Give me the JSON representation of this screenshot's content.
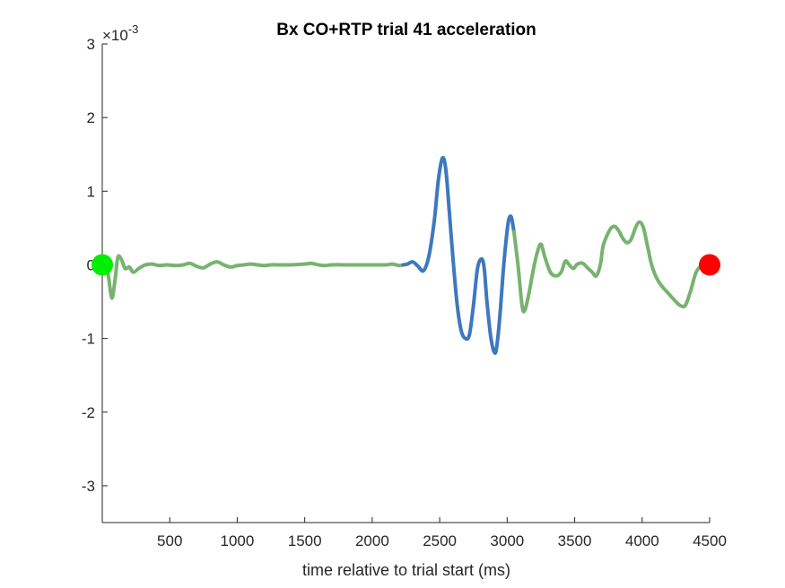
{
  "chart_data": {
    "type": "line",
    "title": "Bx  CO+RTP trial 41 acceleration",
    "xlabel": "time relative to trial start (ms)",
    "ylabel": "",
    "xlim": [
      0,
      4500
    ],
    "ylim": [
      -3.5,
      3.0
    ],
    "y_exponent_label": "×10",
    "y_exponent_power": "-3",
    "x_ticks": [
      {
        "value": 500,
        "label": "500"
      },
      {
        "value": 1000,
        "label": "1000"
      },
      {
        "value": 1500,
        "label": "1500"
      },
      {
        "value": 2000,
        "label": "2000"
      },
      {
        "value": 2500,
        "label": "2500"
      },
      {
        "value": 3000,
        "label": "3000"
      },
      {
        "value": 3500,
        "label": "3500"
      },
      {
        "value": 4000,
        "label": "4000"
      },
      {
        "value": 4500,
        "label": "4500"
      }
    ],
    "y_ticks": [
      {
        "value": 3,
        "label": "3"
      },
      {
        "value": 2,
        "label": "2"
      },
      {
        "value": 1,
        "label": "1"
      },
      {
        "value": 0,
        "label": "0"
      },
      {
        "value": -1,
        "label": "-1"
      },
      {
        "value": -2,
        "label": "-2"
      },
      {
        "value": -3,
        "label": "-3"
      }
    ],
    "grid": false,
    "series": [
      {
        "color": "#77b36e",
        "x": [
          0,
          40,
          70,
          95,
          115,
          140,
          170,
          200,
          230,
          270,
          320,
          370,
          420,
          480,
          540,
          600,
          650,
          700,
          750,
          800,
          850,
          900,
          950,
          1000,
          1050,
          1100,
          1150,
          1200,
          1250,
          1300,
          1400,
          1500,
          1550,
          1600,
          1650,
          1700,
          1800,
          1900,
          2000,
          2100,
          2150,
          2200,
          2230
        ],
        "y": [
          0,
          -0.1,
          -0.45,
          -0.2,
          0.1,
          0.08,
          -0.05,
          -0.03,
          -0.1,
          -0.05,
          0.0,
          0.01,
          -0.01,
          0.0,
          -0.01,
          0.0,
          0.02,
          -0.02,
          -0.04,
          0.01,
          0.04,
          0.0,
          -0.03,
          -0.01,
          0.0,
          0.01,
          0.0,
          -0.01,
          0.0,
          0.0,
          0.0,
          0.01,
          0.02,
          0.0,
          -0.01,
          0.0,
          0.0,
          0.0,
          0.0,
          0.0,
          0.01,
          -0.01,
          0.0
        ]
      },
      {
        "color": "#3d78c0",
        "x": [
          2230,
          2260,
          2300,
          2340,
          2380,
          2420,
          2460,
          2490,
          2520,
          2545,
          2570,
          2600,
          2630,
          2660,
          2690,
          2720,
          2750,
          2780,
          2810,
          2830,
          2850,
          2880,
          2910,
          2930,
          2950,
          2970,
          2990,
          3010,
          3030,
          3050
        ],
        "y": [
          0.0,
          0.01,
          0.04,
          -0.02,
          -0.08,
          0.12,
          0.6,
          1.15,
          1.45,
          1.3,
          0.75,
          0.05,
          -0.55,
          -0.9,
          -1.0,
          -0.95,
          -0.55,
          -0.05,
          0.08,
          -0.05,
          -0.5,
          -1.0,
          -1.2,
          -1.0,
          -0.6,
          -0.1,
          0.3,
          0.6,
          0.65,
          0.45
        ]
      },
      {
        "color": "#77b36e",
        "x": [
          3050,
          3080,
          3110,
          3130,
          3160,
          3190,
          3220,
          3250,
          3280,
          3320,
          3360,
          3400,
          3430,
          3460,
          3490,
          3520,
          3560,
          3600,
          3630,
          3660,
          3690,
          3710,
          3740,
          3770,
          3800,
          3830,
          3860,
          3890,
          3920,
          3950,
          3980,
          4010,
          4040,
          4070,
          4100,
          4130,
          4160,
          4200,
          4240,
          4280,
          4320,
          4360,
          4400,
          4450,
          4500
        ],
        "y": [
          0.45,
          0.0,
          -0.55,
          -0.62,
          -0.4,
          -0.1,
          0.15,
          0.28,
          0.1,
          -0.1,
          -0.15,
          -0.1,
          0.05,
          0.0,
          -0.05,
          0.01,
          0.02,
          -0.05,
          -0.1,
          -0.15,
          0.0,
          0.25,
          0.4,
          0.5,
          0.52,
          0.45,
          0.35,
          0.3,
          0.35,
          0.5,
          0.58,
          0.5,
          0.25,
          0.0,
          -0.15,
          -0.25,
          -0.32,
          -0.4,
          -0.48,
          -0.55,
          -0.55,
          -0.35,
          -0.1,
          0.0,
          0.0
        ]
      }
    ],
    "markers": [
      {
        "x": 0,
        "y": 0,
        "color": "#00ee00"
      },
      {
        "x": 4500,
        "y": 0,
        "color": "#ff0000"
      }
    ]
  }
}
